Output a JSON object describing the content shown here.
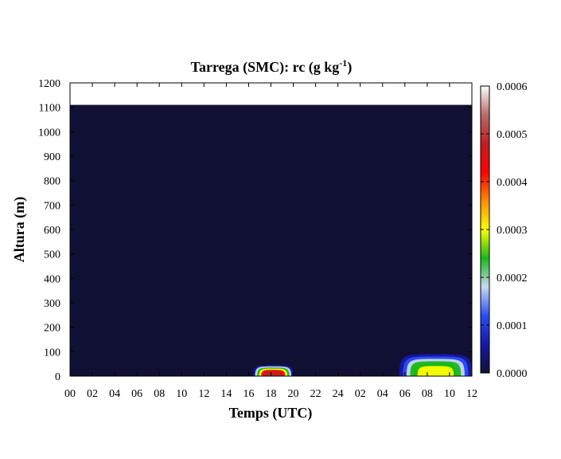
{
  "chart_data": {
    "type": "heatmap",
    "title_main": "Tarrega (SMC): rc (g kg",
    "title_sup": "-1",
    "title_end": ")",
    "xlabel": "Temps (UTC)",
    "ylabel": "Altura (m)",
    "x_ticks": [
      "00",
      "02",
      "04",
      "06",
      "08",
      "10",
      "12",
      "14",
      "16",
      "18",
      "20",
      "22",
      "24",
      "02",
      "04",
      "06",
      "08",
      "10",
      "12"
    ],
    "y_ticks": [
      0,
      100,
      200,
      300,
      400,
      500,
      600,
      700,
      800,
      900,
      1000,
      1100,
      1200
    ],
    "ylim": [
      0,
      1200
    ],
    "xlim_hours": [
      0,
      36
    ],
    "data_top_height": 1110,
    "colorbar": {
      "range": [
        0,
        0.0006
      ],
      "tick_values": [
        0,
        0.0001,
        0.0002,
        0.0003,
        0.0004,
        0.0005,
        0.0006
      ],
      "tick_labels": [
        "0.0000",
        "0.0001",
        "0.0002",
        "0.0003",
        "0.0004",
        "0.0005",
        "0.0006"
      ],
      "colors": [
        "#101035",
        "#1818a8",
        "#2a4ef5",
        "#c8d8f0",
        "#18b818",
        "#ffff00",
        "#ff8c00",
        "#ff0000",
        "#c02020",
        "#b86a6a",
        "#ffffff"
      ]
    },
    "features": [
      {
        "x_start": 16.4,
        "x_end": 20.0,
        "height_peak": 45,
        "value_peak": 0.00048
      },
      {
        "x_start": 29.5,
        "x_end": 36.0,
        "height_peak": 90,
        "value_peak": 0.00032
      }
    ]
  }
}
